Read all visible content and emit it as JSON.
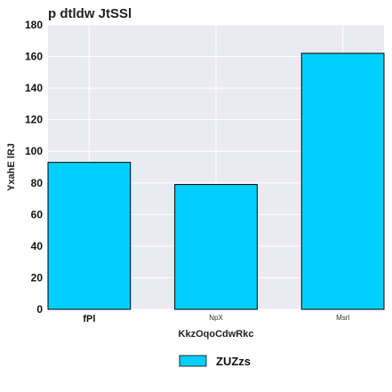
{
  "chart_data": {
    "type": "bar",
    "title": "p dtldw JtSSl",
    "xlabel": "KkzOqoCdwRkc",
    "ylabel": "YxahE  lRJ",
    "categories": [
      "fPl",
      "NpX",
      "Msrl"
    ],
    "series": [
      {
        "name": "ZUZzs",
        "values": [
          93,
          79,
          162
        ],
        "color": "#00cfff"
      }
    ],
    "ylim": [
      0,
      180
    ],
    "yticks": [
      0,
      20,
      40,
      60,
      80,
      100,
      120,
      140,
      160,
      180
    ],
    "grid": true,
    "legend": "bottom-center",
    "colors": {
      "plot_background": "#eaeaf2",
      "grid": "#ffffff",
      "bar": "#00cfff",
      "bar_edge": "#000000"
    }
  }
}
